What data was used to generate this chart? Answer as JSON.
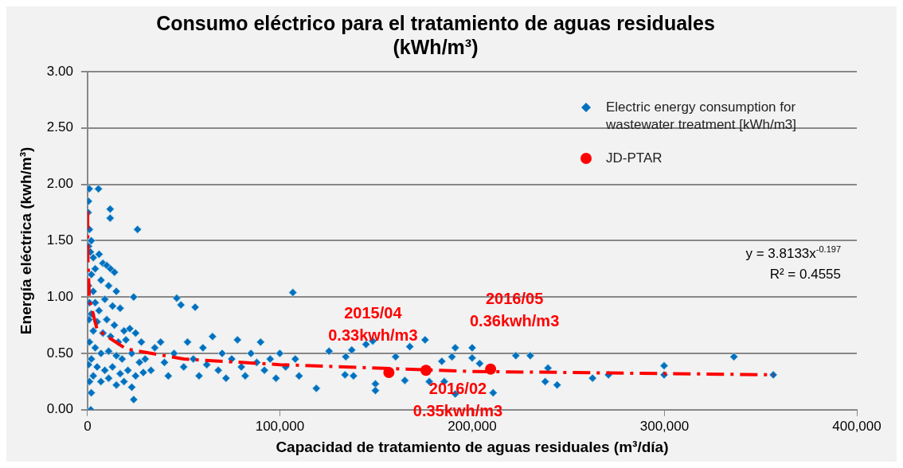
{
  "chart_data": {
    "type": "scatter",
    "title": "Consumo eléctrico para el tratamiento de aguas residuales\n(kWh/m³)",
    "xlabel": "Capacidad de tratamiento de aguas residuales (m³/día)",
    "ylabel": "Energía eléctrica (kwh/m³)",
    "xlim": [
      0,
      400000
    ],
    "xticks": [
      0,
      {
        "value": 100000,
        "label": "100,000"
      },
      {
        "value": 200000,
        "label": "200,000"
      },
      {
        "value": 300000,
        "label": "300,000"
      },
      {
        "value": 400000,
        "label": "400,000"
      }
    ],
    "ylim": [
      0,
      3
    ],
    "yticks": [
      {
        "value": 0,
        "label": "0.00"
      },
      {
        "value": 0.5,
        "label": "0.50"
      },
      {
        "value": 1,
        "label": "1.00"
      },
      {
        "value": 1.5,
        "label": "1.50"
      },
      {
        "value": 2,
        "label": "2.00"
      },
      {
        "value": 2.5,
        "label": "2.50"
      },
      {
        "value": 3,
        "label": "3.00"
      }
    ],
    "grid": "y",
    "legend": "top right",
    "marker": "diamond",
    "series": [
      {
        "name": "Electric energy consumption for wastewater treatment [kWh/m3]",
        "color": "#0070c0",
        "x": [
          500,
          900,
          5700,
          300,
          1000,
          2000,
          500,
          1500,
          3000,
          6000,
          8000,
          10000,
          12000,
          14000,
          4000,
          2000,
          7000,
          11000,
          15000,
          3000,
          500,
          1000,
          4000,
          9000,
          13000,
          17000,
          6000,
          2000,
          800,
          5000,
          10000,
          14000,
          19000,
          22000,
          3000,
          8000,
          12000,
          16000,
          20000,
          25000,
          28000,
          1000,
          4000,
          7000,
          11000,
          15000,
          18000,
          23000,
          27000,
          30000,
          2000,
          500,
          5000,
          9000,
          13000,
          17000,
          21000,
          25000,
          29000,
          33000,
          3000,
          7000,
          11000,
          15000,
          19000,
          23000,
          1000,
          2000,
          1700,
          24000,
          26000,
          11800,
          11800,
          24000,
          35000,
          38000,
          40000,
          42000,
          45000,
          46400,
          48600,
          50000,
          52000,
          55000,
          56000,
          58000,
          60000,
          62000,
          65000,
          68000,
          70000,
          72000,
          75000,
          78000,
          80000,
          82000,
          85000,
          88000,
          90000,
          92000,
          95000,
          98000,
          100000,
          103000,
          106800,
          108000,
          110000,
          119000,
          125600,
          134300,
          137400,
          133900,
          138300,
          144800,
          148300,
          149700,
          149700,
          160200,
          165000,
          167600,
          175500,
          177700,
          184200,
          185500,
          189500,
          191200,
          191200,
          200000,
          200000,
          203900,
          210900,
          222700,
          230200,
          239400,
          238000,
          244200,
          262600,
          270900,
          299800,
          299800,
          336100,
          356600
        ],
        "values": [
          1.85,
          1.96,
          1.96,
          1.75,
          1.6,
          1.5,
          1.45,
          1.4,
          1.35,
          1.38,
          1.3,
          1.28,
          1.25,
          1.22,
          1.25,
          1.2,
          1.15,
          1.1,
          1.05,
          1.05,
          1.1,
          0.95,
          0.95,
          0.98,
          0.92,
          0.9,
          0.88,
          0.85,
          0.8,
          0.78,
          0.8,
          0.75,
          0.7,
          0.72,
          0.7,
          0.68,
          0.65,
          0.6,
          0.62,
          0.68,
          0.6,
          0.6,
          0.55,
          0.5,
          0.52,
          0.48,
          0.45,
          0.5,
          0.42,
          0.45,
          0.45,
          0.4,
          0.38,
          0.35,
          0.38,
          0.32,
          0.35,
          0.3,
          0.33,
          0.35,
          0.3,
          0.25,
          0.28,
          0.22,
          0.25,
          0.2,
          0.25,
          0.15,
          0.0,
          0.09,
          1.6,
          1.78,
          1.7,
          1.0,
          0.55,
          0.6,
          0.42,
          0.3,
          0.5,
          0.99,
          0.93,
          0.38,
          0.6,
          0.45,
          0.91,
          0.3,
          0.55,
          0.4,
          0.65,
          0.35,
          0.5,
          0.28,
          0.45,
          0.62,
          0.38,
          0.3,
          0.5,
          0.42,
          0.6,
          0.35,
          0.45,
          0.28,
          0.5,
          0.38,
          1.04,
          0.45,
          0.3,
          0.19,
          0.52,
          0.47,
          0.53,
          0.31,
          0.3,
          0.58,
          0.61,
          0.23,
          0.17,
          0.47,
          0.26,
          0.56,
          0.62,
          0.25,
          0.43,
          0.25,
          0.47,
          0.55,
          0.14,
          0.55,
          0.46,
          0.41,
          0.15,
          0.48,
          0.48,
          0.37,
          0.25,
          0.22,
          0.28,
          0.31,
          0.39,
          0.31,
          0.47,
          0.31
        ]
      },
      {
        "name": "JD-PTAR",
        "color": "#ff0000",
        "marker": "circle",
        "x": [
          156700,
          176000,
          209600
        ],
        "values": [
          0.33,
          0.35,
          0.36
        ]
      },
      {
        "type": "line",
        "color": "#ff0000",
        "line_style": "dashed",
        "marker": "none",
        "x": [
          50,
          200,
          1000,
          5000,
          20000,
          50000,
          100000,
          200000,
          357000
        ],
        "values": [
          1.76,
          1.34,
          0.98,
          0.71,
          0.54,
          0.45,
          0.4,
          0.34,
          0.31
        ]
      }
    ],
    "annotations": [
      {
        "text": "2015/04\n0.33kwh/m3",
        "x": 156700,
        "y": 0.33
      },
      {
        "text": "2016/02\n0.35kwh/m3",
        "x": 176000,
        "y": 0.35
      },
      {
        "text": "2016/05\n0.36kwh/m3",
        "x": 209600,
        "y": 0.36
      },
      "y = 3.8133x$^{-0.197}$",
      "R² = 0.4555"
    ]
  }
}
